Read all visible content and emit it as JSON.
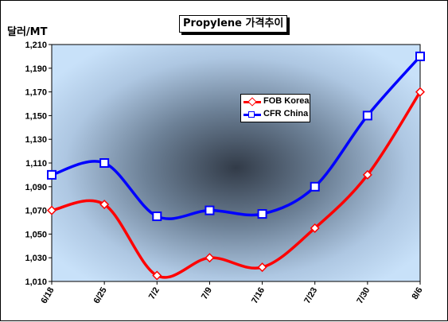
{
  "chart_data": {
    "type": "line",
    "title": "Propylene 가격추이",
    "ylabel": "달러/MT",
    "xlabel": "",
    "categories": [
      "6/18",
      "6/25",
      "7/2",
      "7/9",
      "7/16",
      "7/23",
      "7/30",
      "8/6"
    ],
    "ylim": [
      1010,
      1210
    ],
    "yticks": [
      "1,010",
      "1,030",
      "1,050",
      "1,070",
      "1,090",
      "1,110",
      "1,130",
      "1,150",
      "1,170",
      "1,190",
      "1,210"
    ],
    "grid": false,
    "legend_position": "center-right",
    "series": [
      {
        "name": "FOB Korea",
        "color": "#ff0000",
        "marker": "diamond",
        "values": [
          1070,
          1075,
          1015,
          1030,
          1022,
          1055,
          1100,
          1170
        ]
      },
      {
        "name": "CFR China",
        "color": "#0000ff",
        "marker": "square",
        "values": [
          1100,
          1110,
          1065,
          1070,
          1067,
          1090,
          1150,
          1200
        ]
      }
    ]
  }
}
